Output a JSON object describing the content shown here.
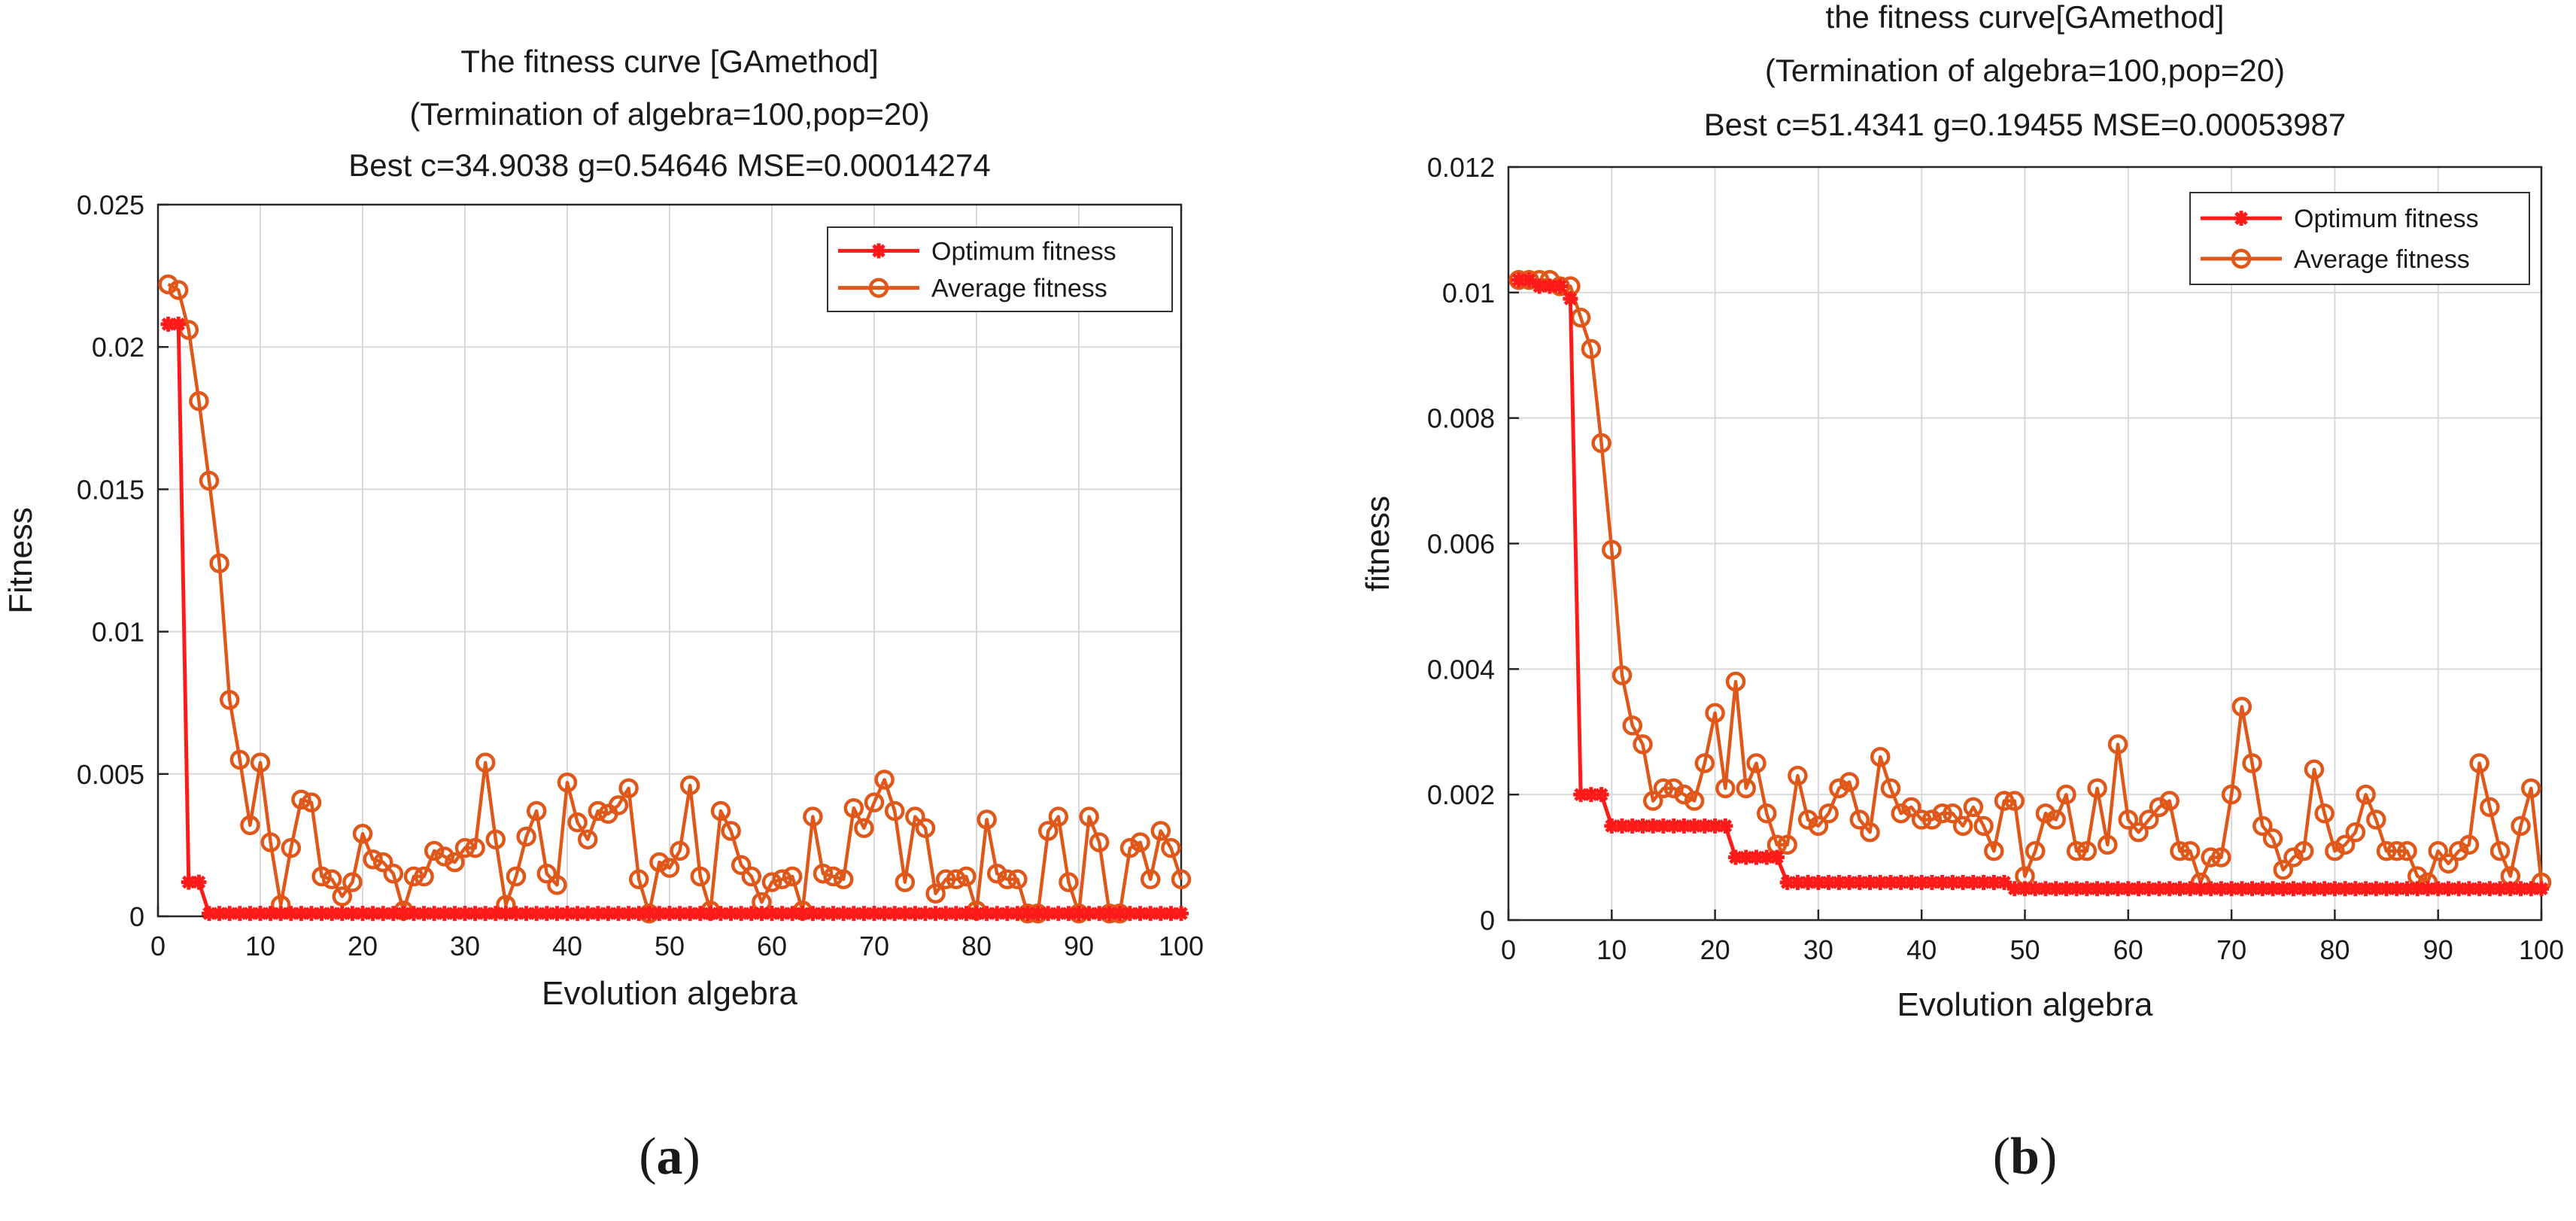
{
  "colors": {
    "optimum": "#ff1a1a",
    "average": "#e0571a",
    "grid": "#d9d9d9",
    "axis": "#262626",
    "text": "#1a1a1a"
  },
  "chart_data": [
    {
      "type": "line",
      "panel_label": "a",
      "title_lines": [
        "The fitness curve [GAmethod]",
        "(Termination of algebra=100,pop=20)",
        "Best c=34.9038 g=0.54646 MSE=0.00014274"
      ],
      "xlabel": "Evolution algebra",
      "ylabel": "Fitness",
      "xlim": [
        0,
        100
      ],
      "ylim": [
        0,
        0.025
      ],
      "xticks": [
        0,
        10,
        20,
        30,
        40,
        50,
        60,
        70,
        80,
        90,
        100
      ],
      "xtick_labels": [
        "0",
        "10",
        "20",
        "30",
        "40",
        "50",
        "60",
        "70",
        "80",
        "90",
        "100"
      ],
      "yticks": [
        0,
        0.005,
        0.01,
        0.015,
        0.02,
        0.025
      ],
      "ytick_labels": [
        "0",
        "0.005",
        "0.01",
        "0.015",
        "0.02",
        "0.025"
      ],
      "grid": true,
      "legend_position": "top-right",
      "x": [
        1,
        2,
        3,
        4,
        5,
        6,
        7,
        8,
        9,
        10,
        11,
        12,
        13,
        14,
        15,
        16,
        17,
        18,
        19,
        20,
        21,
        22,
        23,
        24,
        25,
        26,
        27,
        28,
        29,
        30,
        31,
        32,
        33,
        34,
        35,
        36,
        37,
        38,
        39,
        40,
        41,
        42,
        43,
        44,
        45,
        46,
        47,
        48,
        49,
        50,
        51,
        52,
        53,
        54,
        55,
        56,
        57,
        58,
        59,
        60,
        61,
        62,
        63,
        64,
        65,
        66,
        67,
        68,
        69,
        70,
        71,
        72,
        73,
        74,
        75,
        76,
        77,
        78,
        79,
        80,
        81,
        82,
        83,
        84,
        85,
        86,
        87,
        88,
        89,
        90,
        91,
        92,
        93,
        94,
        95,
        96,
        97,
        98,
        99,
        100
      ],
      "series": [
        {
          "name": "Optimum fitness",
          "marker": "asterisk",
          "values": [
            0.0208,
            0.0208,
            0.0012,
            0.0012,
            0.0001,
            0.0001,
            0.0001,
            0.0001,
            0.0001,
            0.0001,
            0.0001,
            0.0001,
            0.0001,
            0.0001,
            0.0001,
            0.0001,
            0.0001,
            0.0001,
            0.0001,
            0.0001,
            0.0001,
            0.0001,
            0.0001,
            0.0001,
            0.0001,
            0.0001,
            0.0001,
            0.0001,
            0.0001,
            0.0001,
            0.0001,
            0.0001,
            0.0001,
            0.0001,
            0.0001,
            0.0001,
            0.0001,
            0.0001,
            0.0001,
            0.0001,
            0.0001,
            0.0001,
            0.0001,
            0.0001,
            0.0001,
            0.0001,
            0.0001,
            0.0001,
            0.0001,
            0.0001,
            0.0001,
            0.0001,
            0.0001,
            0.0001,
            0.0001,
            0.0001,
            0.0001,
            0.0001,
            0.0001,
            0.0001,
            0.0001,
            0.0001,
            0.0001,
            0.0001,
            0.0001,
            0.0001,
            0.0001,
            0.0001,
            0.0001,
            0.0001,
            0.0001,
            0.0001,
            0.0001,
            0.0001,
            0.0001,
            0.0001,
            0.0001,
            0.0001,
            0.0001,
            0.0001,
            0.0001,
            0.0001,
            0.0001,
            0.0001,
            0.0001,
            0.0001,
            0.0001,
            0.0001,
            0.0001,
            0.0001,
            0.0001,
            0.0001,
            0.0001,
            0.0001,
            0.0001,
            0.0001,
            0.0001,
            0.0001,
            0.0001,
            0.0001
          ]
        },
        {
          "name": "Average fitness",
          "marker": "circle",
          "values": [
            0.0222,
            0.022,
            0.0206,
            0.0181,
            0.0153,
            0.0124,
            0.0076,
            0.0055,
            0.0032,
            0.0054,
            0.0026,
            0.0004,
            0.0024,
            0.0041,
            0.004,
            0.0014,
            0.0013,
            0.0007,
            0.0012,
            0.0029,
            0.002,
            0.0019,
            0.0015,
            0.0002,
            0.0014,
            0.0014,
            0.0023,
            0.0021,
            0.0019,
            0.0024,
            0.0024,
            0.0054,
            0.0027,
            0.0004,
            0.0014,
            0.0028,
            0.0037,
            0.0015,
            0.0011,
            0.0047,
            0.0033,
            0.0027,
            0.0037,
            0.0036,
            0.0039,
            0.0045,
            0.0013,
            0.0001,
            0.0019,
            0.0017,
            0.0023,
            0.0046,
            0.0014,
            0.0002,
            0.0037,
            0.003,
            0.0018,
            0.0014,
            0.0005,
            0.0012,
            0.0013,
            0.0014,
            0.0002,
            0.0035,
            0.0015,
            0.0014,
            0.0013,
            0.0038,
            0.0031,
            0.004,
            0.0048,
            0.0037,
            0.0012,
            0.0035,
            0.0031,
            0.0008,
            0.0013,
            0.0013,
            0.0014,
            0.0002,
            0.0034,
            0.0015,
            0.0013,
            0.0013,
            0.0001,
            0.0001,
            0.003,
            0.0035,
            0.0012,
            0.0001,
            0.0035,
            0.0026,
            0.0001,
            0.0001,
            0.0024,
            0.0026,
            0.0013,
            0.003,
            0.0024,
            0.0013
          ]
        }
      ]
    },
    {
      "type": "line",
      "panel_label": "b",
      "title_lines": [
        "the fitness curve[GAmethod]",
        "(Termination of algebra=100,pop=20)",
        "Best c=51.4341 g=0.19455 MSE=0.00053987"
      ],
      "xlabel": "Evolution algebra",
      "ylabel": "fitness",
      "xlim": [
        0,
        100
      ],
      "ylim": [
        0,
        0.012
      ],
      "xticks": [
        0,
        10,
        20,
        30,
        40,
        50,
        60,
        70,
        80,
        90,
        100
      ],
      "xtick_labels": [
        "0",
        "10",
        "20",
        "30",
        "40",
        "50",
        "60",
        "70",
        "80",
        "90",
        "100"
      ],
      "yticks": [
        0,
        0.002,
        0.004,
        0.006,
        0.008,
        0.01,
        0.012
      ],
      "ytick_labels": [
        "0",
        "0.002",
        "0.004",
        "0.006",
        "0.008",
        "0.01",
        "0.012"
      ],
      "grid": true,
      "legend_position": "top-right",
      "x": [
        1,
        2,
        3,
        4,
        5,
        6,
        7,
        8,
        9,
        10,
        11,
        12,
        13,
        14,
        15,
        16,
        17,
        18,
        19,
        20,
        21,
        22,
        23,
        24,
        25,
        26,
        27,
        28,
        29,
        30,
        31,
        32,
        33,
        34,
        35,
        36,
        37,
        38,
        39,
        40,
        41,
        42,
        43,
        44,
        45,
        46,
        47,
        48,
        49,
        50,
        51,
        52,
        53,
        54,
        55,
        56,
        57,
        58,
        59,
        60,
        61,
        62,
        63,
        64,
        65,
        66,
        67,
        68,
        69,
        70,
        71,
        72,
        73,
        74,
        75,
        76,
        77,
        78,
        79,
        80,
        81,
        82,
        83,
        84,
        85,
        86,
        87,
        88,
        89,
        90,
        91,
        92,
        93,
        94,
        95,
        96,
        97,
        98,
        99,
        100
      ],
      "series": [
        {
          "name": "Optimum fitness",
          "marker": "asterisk",
          "values": [
            0.0102,
            0.0102,
            0.0101,
            0.0101,
            0.0101,
            0.0099,
            0.002,
            0.002,
            0.002,
            0.0015,
            0.0015,
            0.0015,
            0.0015,
            0.0015,
            0.0015,
            0.0015,
            0.0015,
            0.0015,
            0.0015,
            0.0015,
            0.0015,
            0.001,
            0.001,
            0.001,
            0.001,
            0.001,
            0.0006,
            0.0006,
            0.0006,
            0.0006,
            0.0006,
            0.0006,
            0.0006,
            0.0006,
            0.0006,
            0.0006,
            0.0006,
            0.0006,
            0.0006,
            0.0006,
            0.0006,
            0.0006,
            0.0006,
            0.0006,
            0.0006,
            0.0006,
            0.0006,
            0.0006,
            0.0005,
            0.0005,
            0.0005,
            0.0005,
            0.0005,
            0.0005,
            0.0005,
            0.0005,
            0.0005,
            0.0005,
            0.0005,
            0.0005,
            0.0005,
            0.0005,
            0.0005,
            0.0005,
            0.0005,
            0.0005,
            0.0005,
            0.0005,
            0.0005,
            0.0005,
            0.0005,
            0.0005,
            0.0005,
            0.0005,
            0.0005,
            0.0005,
            0.0005,
            0.0005,
            0.0005,
            0.0005,
            0.0005,
            0.0005,
            0.0005,
            0.0005,
            0.0005,
            0.0005,
            0.0005,
            0.0005,
            0.0005,
            0.0005,
            0.0005,
            0.0005,
            0.0005,
            0.0005,
            0.0005,
            0.0005,
            0.0005,
            0.0005,
            0.0005,
            0.0005
          ]
        },
        {
          "name": "Average fitness",
          "marker": "circle",
          "values": [
            0.0102,
            0.0102,
            0.0102,
            0.0102,
            0.0101,
            0.0101,
            0.0096,
            0.0091,
            0.0076,
            0.0059,
            0.0039,
            0.0031,
            0.0028,
            0.0019,
            0.0021,
            0.0021,
            0.002,
            0.0019,
            0.0025,
            0.0033,
            0.0021,
            0.0038,
            0.0021,
            0.0025,
            0.0017,
            0.0012,
            0.0012,
            0.0023,
            0.0016,
            0.0015,
            0.0017,
            0.0021,
            0.0022,
            0.0016,
            0.0014,
            0.0026,
            0.0021,
            0.0017,
            0.0018,
            0.0016,
            0.0016,
            0.0017,
            0.0017,
            0.0015,
            0.0018,
            0.0015,
            0.0011,
            0.0019,
            0.0019,
            0.0007,
            0.0011,
            0.0017,
            0.0016,
            0.002,
            0.0011,
            0.0011,
            0.0021,
            0.0012,
            0.0028,
            0.0016,
            0.0014,
            0.0016,
            0.0018,
            0.0019,
            0.0011,
            0.0011,
            0.0006,
            0.001,
            0.001,
            0.002,
            0.0034,
            0.0025,
            0.0015,
            0.0013,
            0.0008,
            0.001,
            0.0011,
            0.0024,
            0.0017,
            0.0011,
            0.0012,
            0.0014,
            0.002,
            0.0016,
            0.0011,
            0.0011,
            0.0011,
            0.0007,
            0.0006,
            0.0011,
            0.0009,
            0.0011,
            0.0012,
            0.0025,
            0.0018,
            0.0011,
            0.0007,
            0.0015,
            0.0021,
            0.0006
          ]
        }
      ]
    }
  ]
}
